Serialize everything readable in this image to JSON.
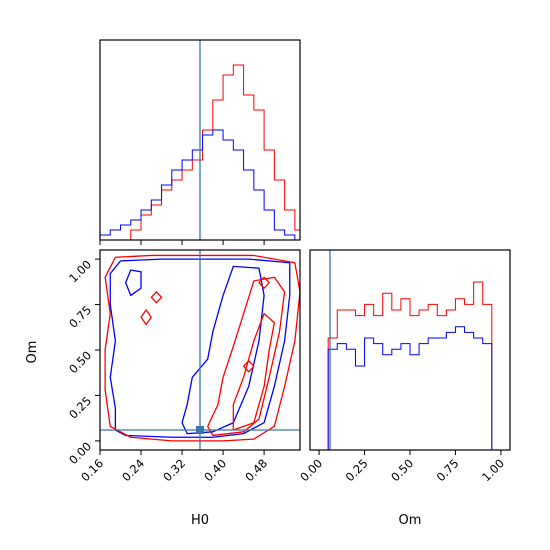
{
  "chart_data": {
    "type": "corner",
    "parameters": [
      "H0",
      "Om"
    ],
    "truths": {
      "H0": 0.35,
      "Om": 0.02
    },
    "colors": {
      "red": "#ff0000",
      "blue": "#0000ff",
      "truth": "#3a75a8"
    },
    "axes": {
      "H0": {
        "range": [
          0.16,
          0.55
        ],
        "ticks": [
          "0.16",
          "0.24",
          "0.32",
          "0.40",
          "0.48"
        ]
      },
      "Om": {
        "range": [
          -0.05,
          1.05
        ],
        "ticks": [
          "0.00",
          "0.25",
          "0.50",
          "0.75",
          "1.00"
        ]
      }
    },
    "hist_h0": {
      "bins": [
        0.16,
        0.17,
        0.18,
        0.19,
        0.2,
        0.21,
        0.22,
        0.23,
        0.24,
        0.25,
        0.26,
        0.27,
        0.28,
        0.29,
        0.3,
        0.31,
        0.32,
        0.33,
        0.34,
        0.35,
        0.36,
        0.37,
        0.38,
        0.39,
        0.4,
        0.41,
        0.42,
        0.43,
        0.44,
        0.45,
        0.46,
        0.47,
        0.48,
        0.49,
        0.5,
        0.51,
        0.52,
        0.53,
        0.54,
        0.55
      ],
      "series": [
        {
          "color": "red",
          "values": [
            0,
            0,
            0,
            0,
            0,
            0,
            2,
            2,
            5,
            5,
            7,
            7,
            10,
            10,
            12,
            12,
            14,
            14,
            16,
            16,
            22,
            22,
            28,
            28,
            33,
            33,
            35,
            35,
            29,
            29,
            26,
            26,
            18,
            18,
            12,
            12,
            6,
            6,
            2
          ]
        },
        {
          "color": "blue",
          "values": [
            1,
            1,
            2,
            2,
            3,
            3,
            4,
            4,
            6,
            6,
            8,
            8,
            11,
            11,
            14,
            14,
            16,
            16,
            18,
            18,
            21,
            21,
            22,
            22,
            20,
            20,
            18,
            18,
            14,
            14,
            10,
            10,
            6,
            6,
            2,
            2,
            1,
            1,
            0
          ]
        }
      ]
    },
    "hist_om": {
      "bins": [
        -0.05,
        0.0,
        0.05,
        0.1,
        0.15,
        0.2,
        0.25,
        0.3,
        0.35,
        0.4,
        0.45,
        0.5,
        0.55,
        0.6,
        0.65,
        0.7,
        0.75,
        0.8,
        0.85,
        0.9,
        0.95,
        1.0,
        1.05
      ],
      "series": [
        {
          "color": "red",
          "values": [
            0,
            0,
            20,
            25,
            25,
            24,
            26,
            24,
            28,
            25,
            27,
            24,
            25,
            26,
            24,
            25,
            27,
            26,
            30,
            26,
            0,
            0
          ]
        },
        {
          "color": "blue",
          "values": [
            0,
            0,
            18,
            19,
            18,
            15,
            20,
            19,
            17,
            18,
            19,
            17,
            19,
            20,
            20,
            21,
            22,
            21,
            20,
            19,
            0,
            0
          ]
        }
      ]
    }
  }
}
